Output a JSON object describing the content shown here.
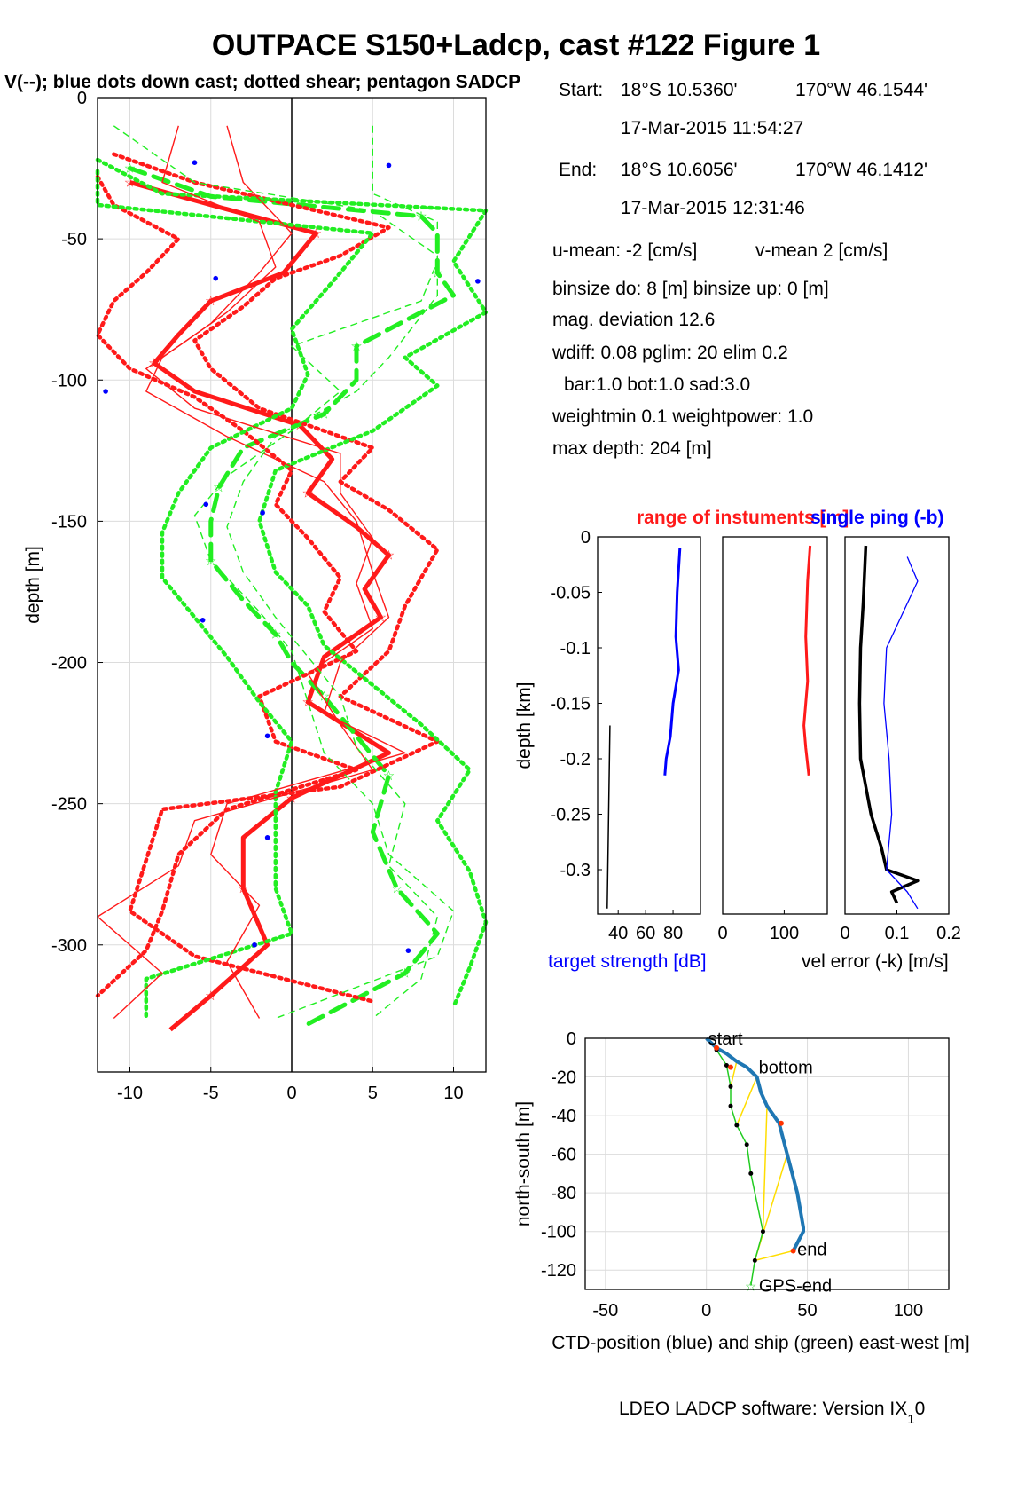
{
  "figure": {
    "title": "OUTPACE S150+Ladcp, cast #122  Figure 1",
    "subtitle": "V(--); blue dots down cast; dotted shear; pentagon SADCP",
    "footer": "LDEO LADCP software: Version IX",
    "footer_sub": "1",
    "footer_tail": "0"
  },
  "info": {
    "start_label": "Start:",
    "start_lat": "18°S 10.5360'",
    "start_lon": "170°W 46.1544'",
    "start_time": "17-Mar-2015 11:54:27",
    "end_label": "End:",
    "end_lat": "18°S 10.6056'",
    "end_lon": "170°W 46.1412'",
    "end_time": "17-Mar-2015 12:31:46",
    "u_mean": "u-mean:  -2 [cm/s]",
    "v_mean": "v-mean   2 [cm/s]",
    "binsize": "binsize do: 8 [m]  binsize up:  0 [m]",
    "mag_dev": "mag. deviation 12.6",
    "wdiff": "wdiff: 0.08  pglim: 20  elim 0.2",
    "bar": "bar:1.0 bot:1.0 sad:3.0",
    "weight": "weightmin 0.1  weightpower: 1.0",
    "max_depth": "max depth: 204 [m]"
  },
  "colors": {
    "u": "#ff1a1a",
    "v": "#22ee22",
    "blue": "#0000ff",
    "ctd": "#1f77b4",
    "ship": "#22cc22",
    "link": "#ffdd00",
    "black": "#000000"
  },
  "chart_data": [
    {
      "type": "line",
      "name": "velocity_profile",
      "xlabel": "",
      "ylabel": "depth [m]",
      "xlim": [
        -12,
        12
      ],
      "ylim": [
        -345,
        0
      ],
      "xticks": [
        "-10",
        "-5",
        "0",
        "5",
        "10"
      ],
      "yticks": [
        "0",
        "-50",
        "-100",
        "-150",
        "-200",
        "-250",
        "-300"
      ],
      "grid": true,
      "series": [
        {
          "name": "U",
          "color": "red",
          "style": "thick",
          "depth": [
            -30,
            -38,
            -48,
            -62,
            -72,
            -84,
            -94,
            -104,
            -116,
            -128,
            -140,
            -152,
            -162,
            -174,
            -184,
            -198,
            -214,
            -232,
            -248,
            -262,
            -280,
            -300,
            -318,
            -330
          ],
          "values": [
            -10,
            -5,
            1.5,
            -0.5,
            -5,
            -7,
            -8.5,
            -6,
            0.5,
            2.5,
            1,
            4,
            6,
            4.5,
            5.5,
            2,
            1,
            6,
            0,
            -3,
            -3,
            -1.5,
            -5,
            -7.5
          ]
        },
        {
          "name": "V",
          "color": "green",
          "style": "thick-dashed",
          "depth": [
            -25,
            -35,
            -42,
            -48,
            -62,
            -70,
            -88,
            -100,
            -112,
            -124,
            -138,
            -150,
            -164,
            -178,
            -190,
            -200,
            -212,
            -226,
            -240,
            -260,
            -280,
            -296,
            -310,
            -328
          ],
          "values": [
            -10,
            -5,
            8,
            9,
            9,
            10,
            4,
            4,
            2,
            -3,
            -4.5,
            -5,
            -5,
            -3,
            -1,
            0,
            2,
            4,
            6,
            5,
            6.5,
            9,
            7,
            1
          ]
        },
        {
          "name": "U-shear-upper",
          "color": "red",
          "style": "dotted",
          "depth": [
            -20,
            -30,
            -46,
            -56,
            -64,
            -74,
            -86,
            -96,
            -110,
            -124,
            -136,
            -146,
            -160,
            -170,
            -180,
            -196,
            -212,
            -228,
            -244,
            -252,
            -270,
            -288,
            -304,
            -320
          ],
          "values": [
            -11,
            -6,
            6,
            3,
            -1,
            -3,
            -6,
            -5,
            -2,
            5,
            3,
            6,
            9,
            8,
            7,
            6,
            3,
            9,
            3,
            -8,
            -9,
            -10,
            -6,
            5
          ]
        },
        {
          "name": "U-shear-lower",
          "color": "red",
          "style": "dotted",
          "depth": [
            -28,
            -38,
            -50,
            -62,
            -72,
            -84,
            -96,
            -106,
            -118,
            -132,
            -144,
            -156,
            -170,
            -182,
            -196,
            -212,
            -228,
            -238,
            -252,
            -268,
            -288,
            -302,
            -318
          ],
          "values": [
            -12,
            -11,
            -7,
            -9,
            -11,
            -12,
            -10,
            -6,
            -3,
            0,
            -1,
            1,
            3,
            2,
            4,
            -2,
            -1,
            4,
            -4,
            -7,
            -8,
            -9,
            -12
          ]
        },
        {
          "name": "V-shear-upper",
          "color": "green",
          "style": "dotted",
          "depth": [
            -22,
            -34,
            -40,
            -58,
            -76,
            -92,
            -102,
            -118,
            -132,
            -150,
            -168,
            -180,
            -194,
            -208,
            -222,
            -238,
            -256,
            -274,
            -292,
            -308,
            -322
          ],
          "values": [
            -12,
            -8,
            12,
            10,
            12,
            7,
            9,
            5,
            -1,
            -2,
            -1,
            1,
            2,
            5,
            8,
            11,
            9,
            11,
            12,
            11,
            10
          ]
        },
        {
          "name": "V-shear-lower",
          "color": "green",
          "style": "dotted",
          "depth": [
            -26,
            -38,
            -48,
            -62,
            -82,
            -98,
            -110,
            -124,
            -140,
            -154,
            -170,
            -184,
            -198,
            -214,
            -228,
            -246,
            -262,
            -280,
            -296,
            -312,
            -326
          ],
          "values": [
            -12,
            -12,
            5,
            3,
            0,
            1,
            0,
            -5,
            -7,
            -8,
            -8,
            -6,
            -4,
            -2,
            0,
            -1,
            -1,
            -1,
            0,
            -9,
            -9
          ]
        },
        {
          "name": "U-thin-1",
          "color": "red",
          "style": "thin",
          "depth": [
            -10,
            -30,
            -44,
            -60,
            -76,
            -92,
            -104,
            -120,
            -136,
            -150,
            -168,
            -184,
            -200,
            -218,
            -232,
            -250,
            -268,
            -286,
            -306,
            -326
          ],
          "values": [
            -7,
            -8,
            -2,
            -1,
            -4,
            -8,
            -9,
            -4,
            2,
            4,
            5,
            6,
            3,
            2,
            7,
            -4,
            -5,
            -2,
            -4,
            -2
          ]
        },
        {
          "name": "U-thin-2",
          "color": "red",
          "style": "thin",
          "depth": [
            -10,
            -30,
            -48,
            -62,
            -80,
            -96,
            -110,
            -126,
            -140,
            -156,
            -172,
            -188,
            -204,
            -222,
            -238,
            -256,
            -272,
            -290,
            -310,
            -326
          ],
          "values": [
            -4,
            -3,
            0,
            -2,
            -5,
            -9,
            -6,
            3,
            3,
            5,
            4,
            5,
            1,
            3,
            5,
            -6,
            -7,
            -12,
            -8,
            -11
          ]
        },
        {
          "name": "V-thin-1",
          "color": "green",
          "style": "thin-dashed",
          "depth": [
            -10,
            -30,
            -40,
            -56,
            -70,
            -92,
            -104,
            -120,
            -136,
            -152,
            -168,
            -184,
            -198,
            -212,
            -230,
            -250,
            -272,
            -290,
            -312,
            -326
          ],
          "values": [
            -11,
            -6,
            5,
            9,
            9,
            6,
            4,
            -1,
            -3,
            -4,
            -3,
            -1,
            1,
            3,
            4,
            7,
            6,
            9,
            8,
            5
          ]
        },
        {
          "name": "V-thin-2",
          "color": "green",
          "style": "thin-dashed",
          "depth": [
            -10,
            -34,
            -44,
            -58,
            -72,
            -88,
            -104,
            -118,
            -134,
            -148,
            -164,
            -182,
            -196,
            -214,
            -232,
            -250,
            -268,
            -288,
            -304,
            -326
          ],
          "values": [
            5,
            5,
            9,
            9,
            8,
            0,
            3,
            0,
            -4,
            -6,
            -5,
            -2,
            0,
            1,
            2,
            5,
            6,
            10,
            9,
            -1
          ]
        },
        {
          "name": "blue-dots",
          "color": "blue",
          "style": "dots",
          "depth": [
            -23,
            -24,
            -64,
            -65,
            -104,
            -144,
            -147,
            -185,
            -226,
            -262,
            -300,
            -302
          ],
          "values": [
            -6,
            6,
            -4.7,
            11.5,
            -11.5,
            -5.3,
            -1.8,
            -5.5,
            -1.5,
            -1.5,
            -2.3,
            7.2
          ]
        }
      ]
    },
    {
      "type": "line",
      "name": "target_strength",
      "xlabel": "target strength [dB]",
      "ylabel": "depth [km]",
      "xlim": [
        25,
        100
      ],
      "ylim": [
        -0.34,
        0
      ],
      "xticks": [
        "40",
        "60",
        "80"
      ],
      "yticks": [
        "0",
        "-0.05",
        "-0.1",
        "-0.15",
        "-0.2",
        "-0.25",
        "-0.3"
      ],
      "series": [
        {
          "name": "down",
          "color": "blue",
          "depth": [
            -0.01,
            -0.05,
            -0.09,
            -0.12,
            -0.15,
            -0.18,
            -0.2,
            -0.215
          ],
          "values": [
            85,
            83,
            82,
            84,
            80,
            78,
            75,
            74
          ]
        },
        {
          "name": "up",
          "color": "black",
          "depth": [
            -0.17,
            -0.25,
            -0.335
          ],
          "values": [
            34,
            33,
            32
          ]
        }
      ]
    },
    {
      "type": "line",
      "name": "range",
      "title": "range of instuments [m]",
      "xlim": [
        0,
        170
      ],
      "ylim": [
        -0.34,
        0
      ],
      "xticks": [
        "0",
        "100"
      ],
      "series": [
        {
          "name": "range",
          "color": "red",
          "depth": [
            -0.008,
            -0.04,
            -0.09,
            -0.13,
            -0.17,
            -0.19,
            -0.215
          ],
          "values": [
            142,
            138,
            135,
            138,
            132,
            135,
            140
          ]
        }
      ]
    },
    {
      "type": "line",
      "name": "vel_error",
      "title": "single ping (-b)",
      "xlabel": "vel error (-k) [m/s]",
      "xlim": [
        0,
        0.2
      ],
      "xticks": [
        "0",
        "0.1",
        "0.2"
      ],
      "ylim": [
        -0.34,
        0
      ],
      "series": [
        {
          "name": "vel error",
          "color": "black",
          "depth": [
            -0.008,
            -0.06,
            -0.1,
            -0.15,
            -0.2,
            -0.25,
            -0.28,
            -0.3,
            -0.31,
            -0.32,
            -0.33
          ],
          "values": [
            0.04,
            0.035,
            0.03,
            0.028,
            0.03,
            0.05,
            0.07,
            0.08,
            0.14,
            0.09,
            0.1
          ]
        },
        {
          "name": "single ping",
          "color": "blue",
          "depth": [
            -0.018,
            -0.04,
            -0.1,
            -0.15,
            -0.2,
            -0.25,
            -0.3,
            -0.32,
            -0.335
          ],
          "values": [
            0.12,
            0.14,
            0.08,
            0.075,
            0.085,
            0.09,
            0.08,
            0.12,
            0.14
          ]
        }
      ]
    },
    {
      "type": "line",
      "name": "position",
      "xlabel": "CTD-position (blue) and ship (green) east-west [m]",
      "ylabel": "north-south [m]",
      "xlim": [
        -60,
        120
      ],
      "ylim": [
        -130,
        0
      ],
      "xticks": [
        "-50",
        "0",
        "50",
        "100"
      ],
      "yticks": [
        "0",
        "-20",
        "-40",
        "-60",
        "-80",
        "-100",
        "-120"
      ],
      "labels": {
        "start": "start",
        "bottom": "bottom",
        "end": "end",
        "gps_end": "GPS-end"
      },
      "series": [
        {
          "name": "CTD",
          "color": "blue",
          "x": [
            0,
            5,
            10,
            15,
            20,
            25,
            27,
            30,
            36,
            40,
            45,
            48,
            48,
            43
          ],
          "y": [
            0,
            -5,
            -8,
            -12,
            -15,
            -20,
            -28,
            -35,
            -44,
            -60,
            -80,
            -98,
            -100,
            -110
          ]
        },
        {
          "name": "ship",
          "color": "green",
          "x": [
            0,
            5,
            10,
            12,
            12,
            15,
            20,
            22,
            28,
            24,
            22
          ],
          "y": [
            0,
            -6,
            -14,
            -25,
            -35,
            -45,
            -55,
            -70,
            -100,
            -115,
            -128
          ]
        }
      ]
    }
  ]
}
